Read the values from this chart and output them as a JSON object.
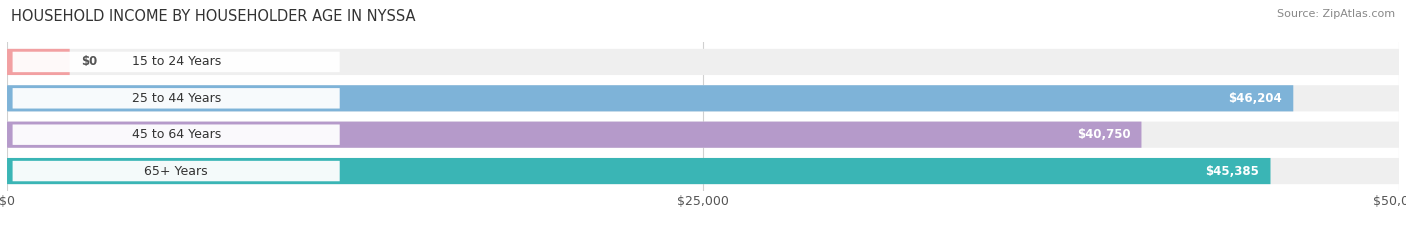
{
  "title": "HOUSEHOLD INCOME BY HOUSEHOLDER AGE IN NYSSA",
  "source": "Source: ZipAtlas.com",
  "categories": [
    "15 to 24 Years",
    "25 to 44 Years",
    "45 to 64 Years",
    "65+ Years"
  ],
  "values": [
    0,
    46204,
    40750,
    45385
  ],
  "bar_colors": [
    "#f2a0a2",
    "#7eb3d8",
    "#b59aca",
    "#3ab5b5"
  ],
  "bg_track_color": "#efefef",
  "xlim": [
    0,
    50000
  ],
  "xticks": [
    0,
    25000,
    50000
  ],
  "xticklabels": [
    "$0",
    "$25,000",
    "$50,000"
  ],
  "value_labels": [
    "$0",
    "$46,204",
    "$40,750",
    "$45,385"
  ],
  "fig_bg": "#ffffff",
  "grid_color": "#d0d0d0"
}
